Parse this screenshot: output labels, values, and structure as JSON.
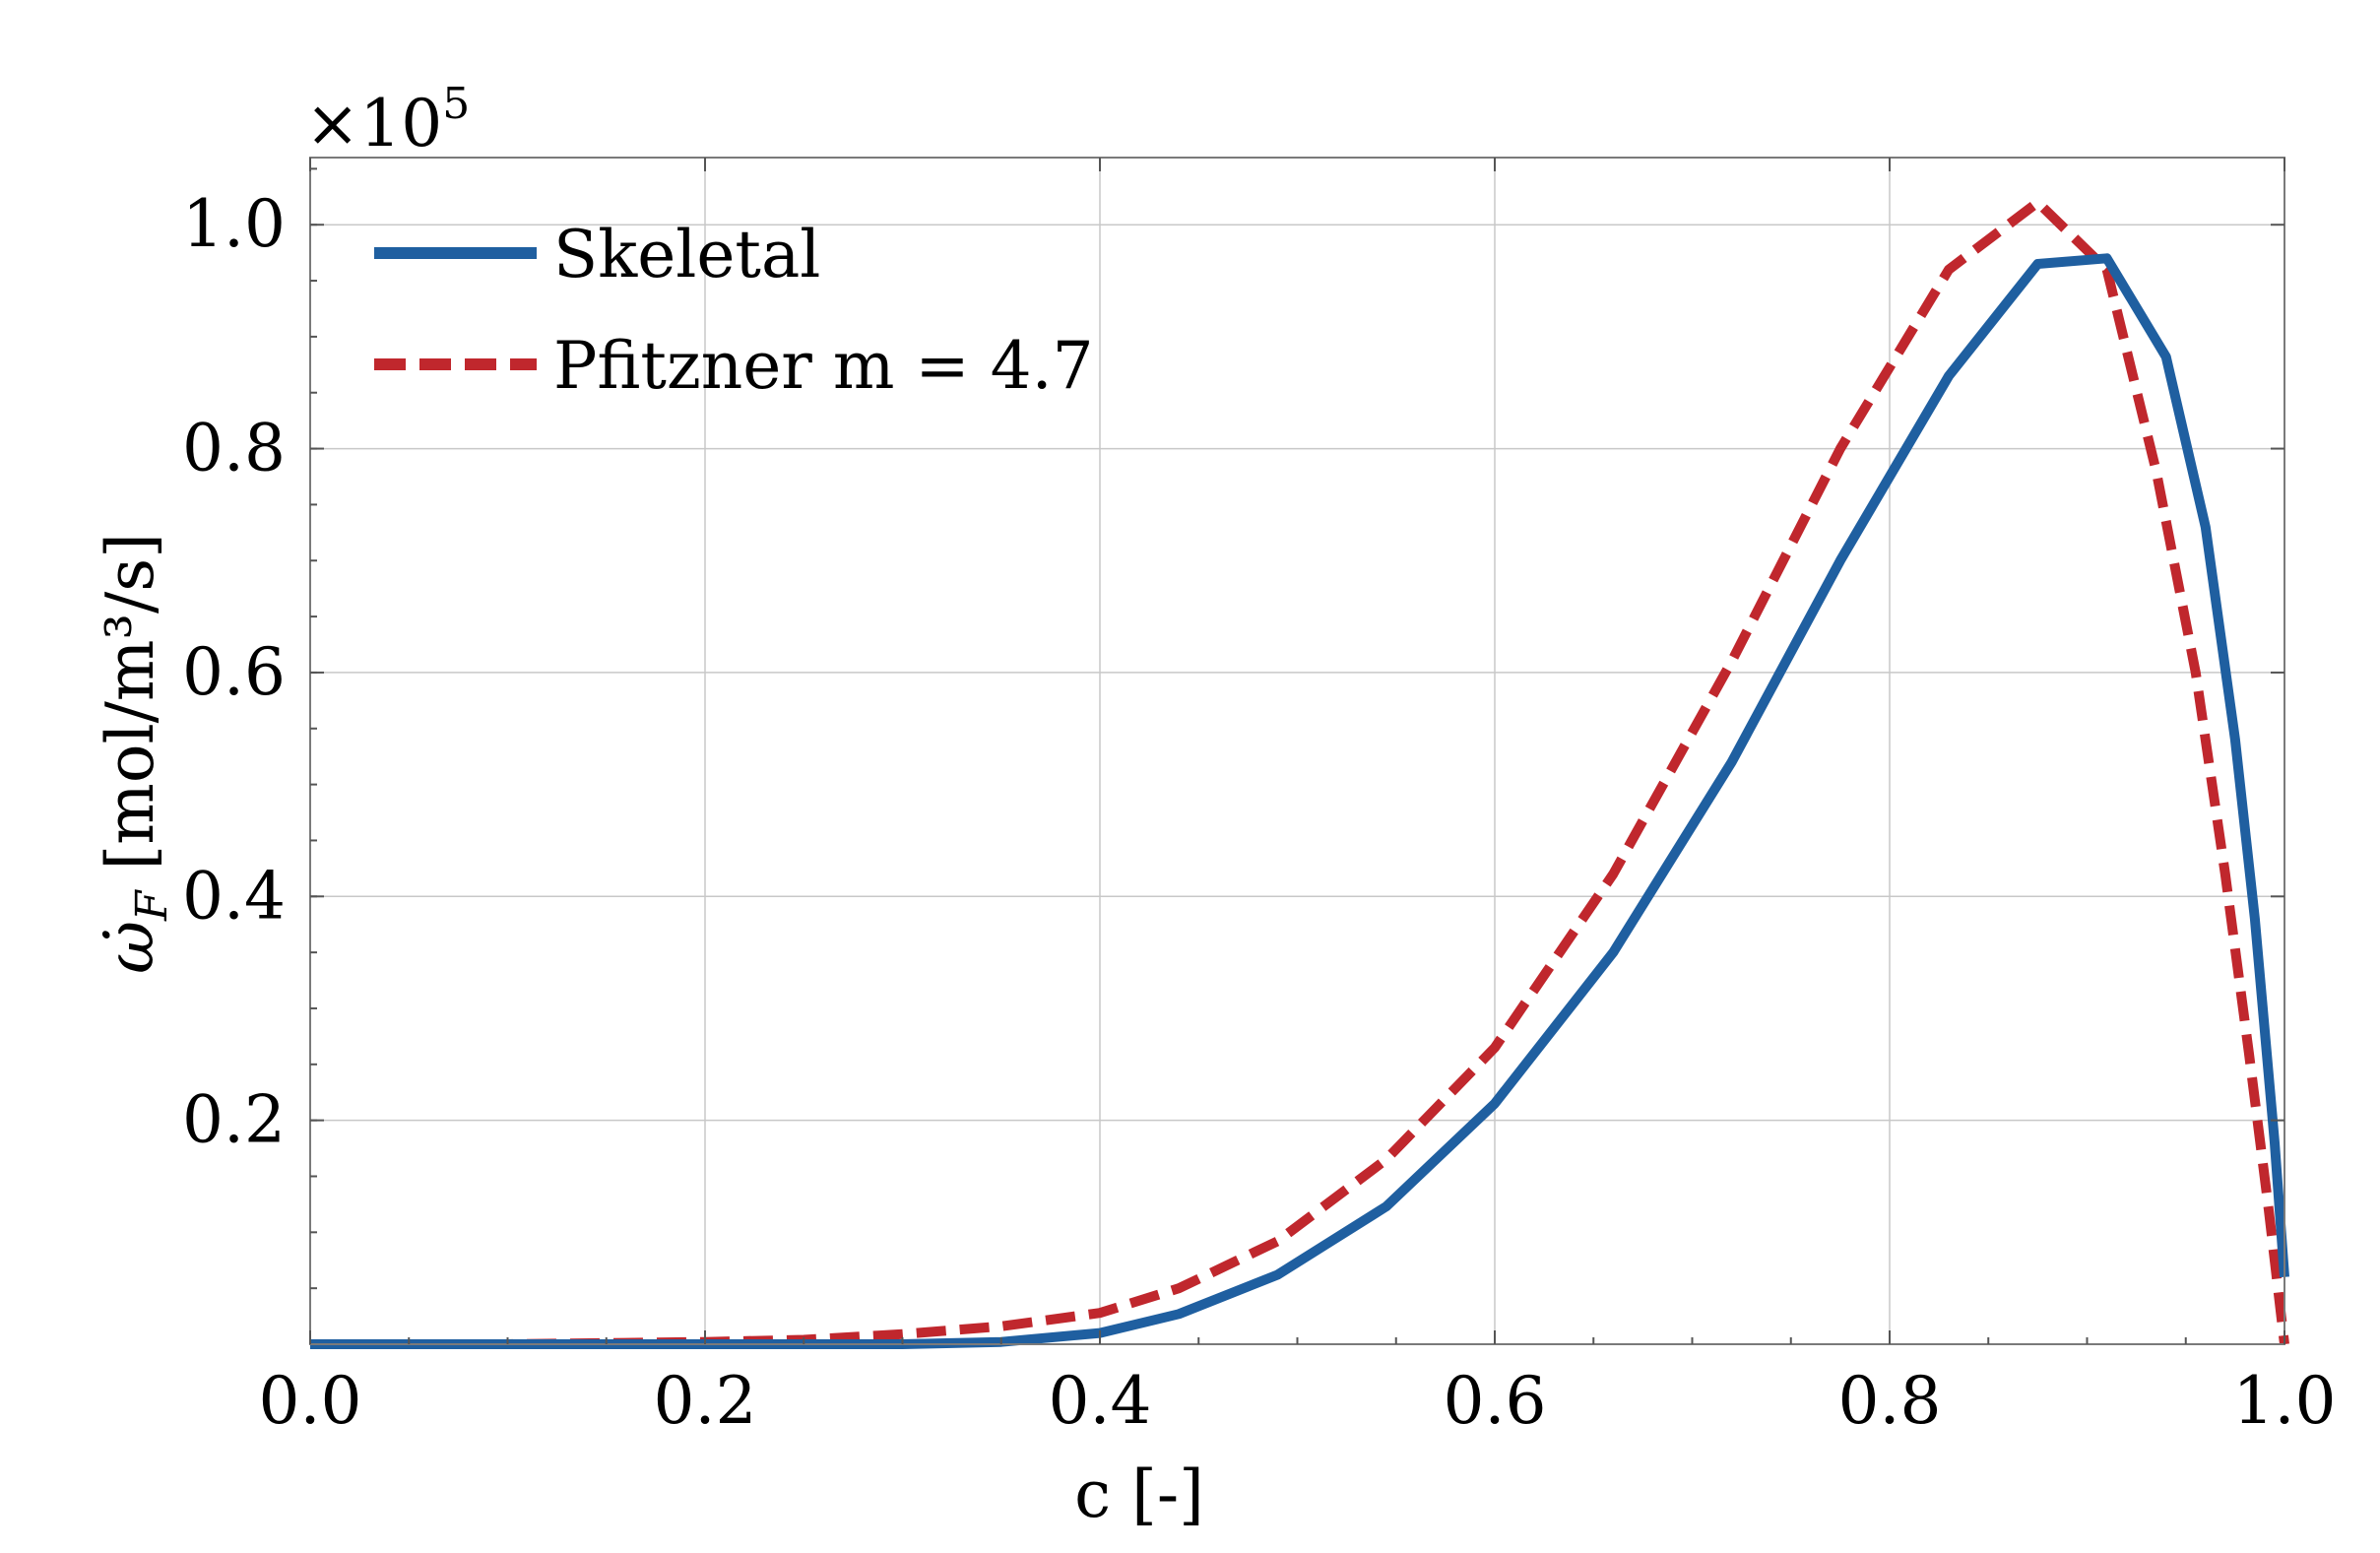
{
  "chart_data": {
    "type": "line",
    "title": "",
    "xlabel": "c [-]",
    "ylabel": "ω̇_F [mol/m³/s]",
    "ylabel_symbol": "ω̇",
    "ylabel_subscript": "F",
    "ylabel_unit": " [mol/m³/s]",
    "y_scale_label": "×10⁵",
    "y_scale_base": "×10",
    "y_scale_exp": "5",
    "xlim": [
      0.0,
      1.0
    ],
    "ylim": [
      0.0,
      1.06
    ],
    "grid": true,
    "legend_location": "top-left",
    "x_ticks": [
      {
        "value": 0.0,
        "label": "0.0"
      },
      {
        "value": 0.2,
        "label": "0.2"
      },
      {
        "value": 0.4,
        "label": "0.4"
      },
      {
        "value": 0.6,
        "label": "0.6"
      },
      {
        "value": 0.8,
        "label": "0.8"
      },
      {
        "value": 1.0,
        "label": "1.0"
      }
    ],
    "y_ticks": [
      {
        "value": 0.2,
        "label": "0.2"
      },
      {
        "value": 0.4,
        "label": "0.4"
      },
      {
        "value": 0.6,
        "label": "0.6"
      },
      {
        "value": 0.8,
        "label": "0.8"
      },
      {
        "value": 1.0,
        "label": "1.0"
      }
    ],
    "series": [
      {
        "name": "Skeletal",
        "color": "#1f5fa0",
        "style": "solid",
        "x": [
          0.0,
          0.1,
          0.2,
          0.3,
          0.35,
          0.4,
          0.44,
          0.49,
          0.545,
          0.6,
          0.66,
          0.72,
          0.775,
          0.83,
          0.875,
          0.91,
          0.94,
          0.96,
          0.975,
          0.985,
          0.995,
          1.0
        ],
        "y": [
          0.0,
          0.0,
          0.0,
          0.0,
          0.002,
          0.01,
          0.027,
          0.062,
          0.123,
          0.215,
          0.35,
          0.52,
          0.7,
          0.865,
          0.965,
          0.97,
          0.882,
          0.73,
          0.54,
          0.38,
          0.18,
          0.06
        ]
      },
      {
        "name": "Pfitzner m = 4.7",
        "color": "#c0272d",
        "style": "dashed",
        "x": [
          0.0,
          0.1,
          0.2,
          0.25,
          0.3,
          0.35,
          0.4,
          0.44,
          0.49,
          0.545,
          0.6,
          0.66,
          0.72,
          0.775,
          0.83,
          0.875,
          0.91,
          0.935,
          0.955,
          0.97,
          0.982,
          0.992,
          1.0
        ],
        "y": [
          0.0,
          0.0,
          0.002,
          0.004,
          0.009,
          0.016,
          0.028,
          0.05,
          0.092,
          0.165,
          0.265,
          0.42,
          0.61,
          0.8,
          0.96,
          1.02,
          0.96,
          0.78,
          0.6,
          0.42,
          0.26,
          0.12,
          0.0
        ]
      }
    ]
  }
}
